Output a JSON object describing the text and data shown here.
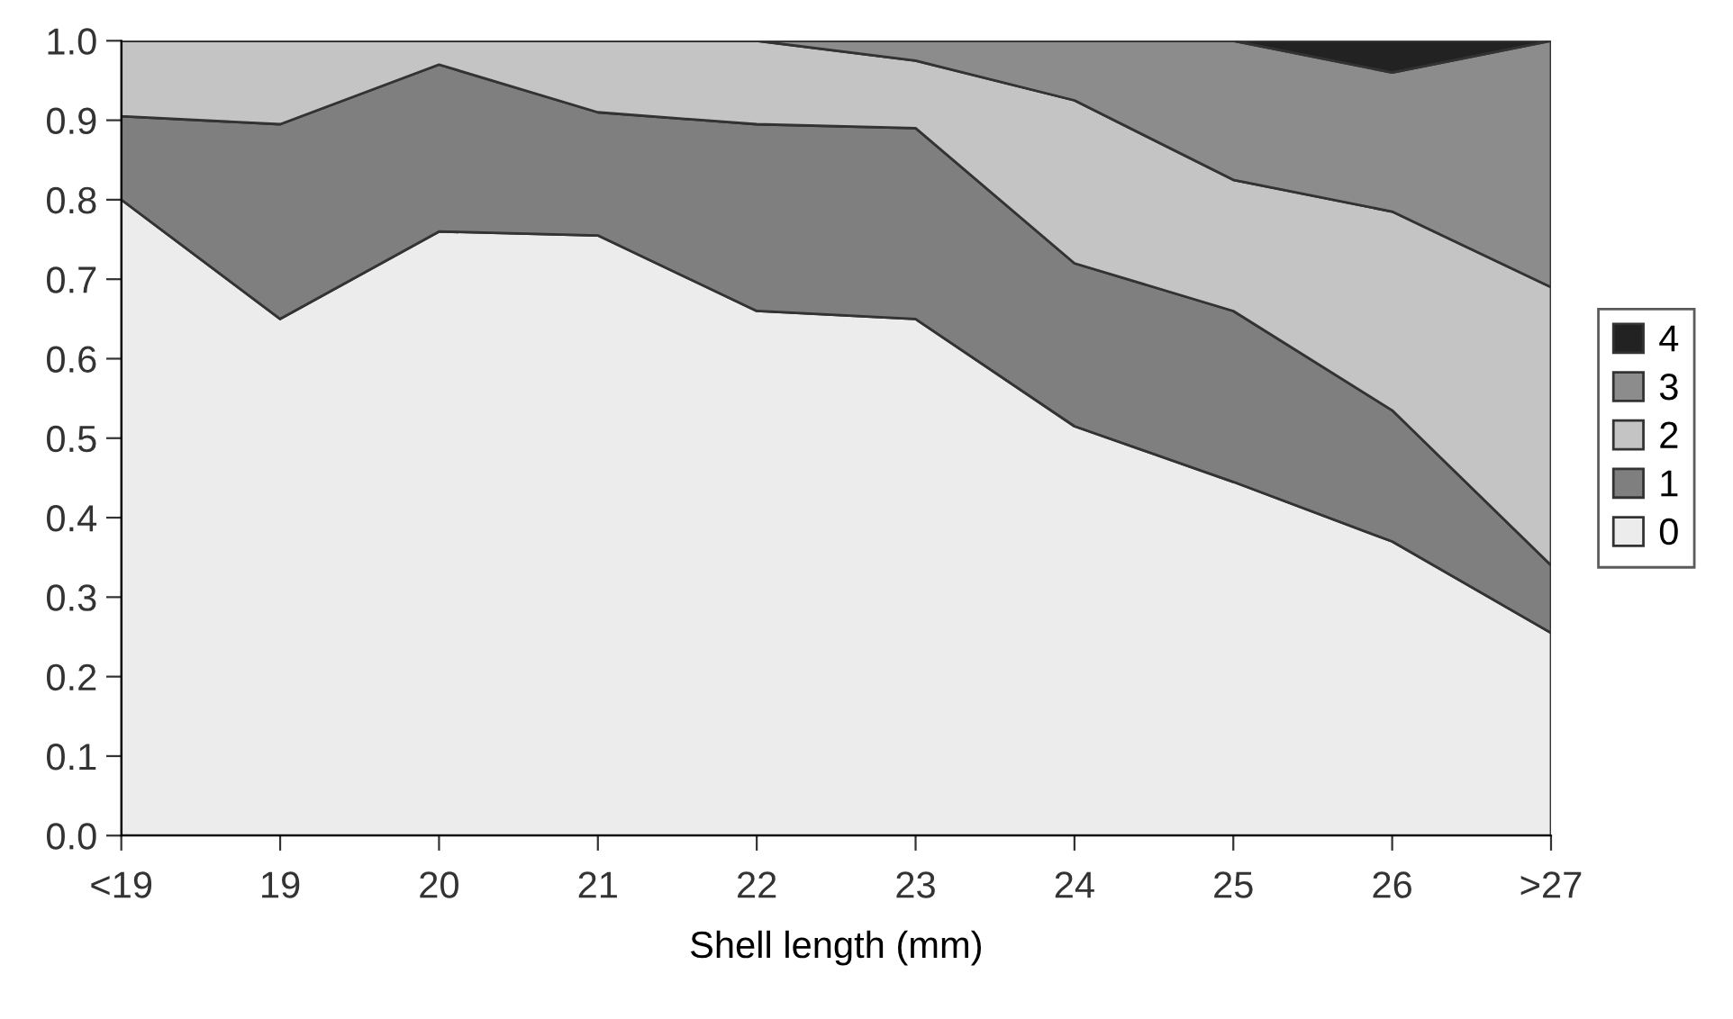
{
  "chart_data": {
    "type": "area",
    "stacked": true,
    "xlabel": "Shell length (mm)",
    "categories": [
      "<19",
      "19",
      "20",
      "21",
      "22",
      "23",
      "24",
      "25",
      "26",
      ">27"
    ],
    "series": [
      {
        "name": "0",
        "color": "#ececec",
        "values": [
          0.8,
          0.65,
          0.76,
          0.755,
          0.66,
          0.65,
          0.515,
          0.445,
          0.37,
          0.255
        ]
      },
      {
        "name": "1",
        "color": "#7f7f7f",
        "values": [
          0.105,
          0.245,
          0.21,
          0.155,
          0.235,
          0.24,
          0.205,
          0.215,
          0.165,
          0.085
        ]
      },
      {
        "name": "2",
        "color": "#c4c4c4",
        "values": [
          0.095,
          0.105,
          0.03,
          0.09,
          0.105,
          0.085,
          0.205,
          0.165,
          0.25,
          0.35
        ]
      },
      {
        "name": "3",
        "color": "#8c8c8c",
        "values": [
          0,
          0,
          0,
          0,
          0,
          0.025,
          0.075,
          0.175,
          0.175,
          0.31
        ]
      },
      {
        "name": "4",
        "color": "#222222",
        "values": [
          0,
          0,
          0,
          0,
          0,
          0,
          0,
          0,
          0.04,
          0
        ]
      }
    ],
    "ylim": [
      0,
      1.0
    ],
    "yticks": [
      {
        "value": 0,
        "label": "0.0"
      },
      0.1,
      0.2,
      0.3,
      0.4,
      0.5,
      0.6,
      0.7,
      0.8,
      0.9,
      {
        "value": 1,
        "label": "1.0"
      }
    ],
    "grid": false,
    "legend": "right"
  }
}
